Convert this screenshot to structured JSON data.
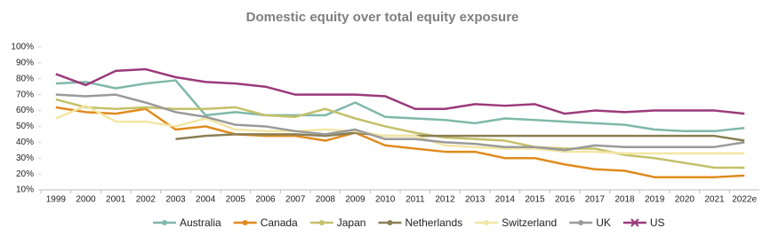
{
  "chart_data": {
    "type": "line",
    "title": "Domestic equity over total equity exposure",
    "categories": [
      "1999",
      "2000",
      "2001",
      "2002",
      "2003",
      "2004",
      "2005",
      "2006",
      "2007",
      "2008",
      "2009",
      "2010",
      "2011",
      "2012",
      "2013",
      "2014",
      "2015",
      "2016",
      "2017",
      "2018",
      "2019",
      "2020",
      "2021",
      "2022e"
    ],
    "ylim": [
      10,
      100
    ],
    "yticks": [
      {
        "value": 10,
        "label": "10%"
      },
      {
        "value": 20,
        "label": "20%"
      },
      {
        "value": 30,
        "label": "30%"
      },
      {
        "value": 40,
        "label": "40%"
      },
      {
        "value": 50,
        "label": "50%"
      },
      {
        "value": 60,
        "label": "60%"
      },
      {
        "value": 70,
        "label": "70%"
      },
      {
        "value": 80,
        "label": "80%"
      },
      {
        "value": 90,
        "label": "90%"
      },
      {
        "value": 100,
        "label": "100%"
      }
    ],
    "grid": false,
    "series": [
      {
        "name": "Australia",
        "color": "#7fb8ab",
        "values": [
          77,
          78,
          74,
          77,
          79,
          57,
          59,
          57,
          57,
          57,
          65,
          56,
          55,
          54,
          52,
          55,
          54,
          53,
          52,
          51,
          48,
          47,
          47,
          49
        ]
      },
      {
        "name": "Canada",
        "color": "#e08a1e",
        "values": [
          62,
          59,
          58,
          61,
          48,
          50,
          45,
          44,
          44,
          41,
          46,
          38,
          36,
          34,
          34,
          30,
          30,
          26,
          23,
          22,
          18,
          18,
          18,
          19
        ]
      },
      {
        "name": "Japan",
        "color": "#c4c06a",
        "values": [
          67,
          62,
          61,
          62,
          61,
          61,
          62,
          57,
          56,
          61,
          55,
          50,
          46,
          43,
          42,
          41,
          37,
          36,
          36,
          32,
          30,
          27,
          24,
          24
        ]
      },
      {
        "name": "Netherlands",
        "color": "#8a7f55",
        "values": [
          null,
          null,
          null,
          null,
          42,
          44,
          45,
          45,
          45,
          44,
          46,
          44,
          44,
          44,
          44,
          44,
          44,
          44,
          44,
          44,
          44,
          44,
          44,
          41
        ]
      },
      {
        "name": "Switzerland",
        "color": "#f2e6a4",
        "values": [
          55,
          63,
          53,
          53,
          50,
          55,
          48,
          47,
          47,
          48,
          47,
          44,
          44,
          38,
          37,
          36,
          36,
          34,
          34,
          33,
          33,
          33,
          33,
          33
        ]
      },
      {
        "name": "UK",
        "color": "#9a9a9a",
        "values": [
          70,
          69,
          70,
          65,
          59,
          56,
          51,
          50,
          47,
          45,
          48,
          42,
          42,
          40,
          39,
          37,
          37,
          35,
          38,
          37,
          37,
          37,
          37,
          40
        ]
      },
      {
        "name": "US",
        "color": "#9b3a7a",
        "values": [
          83,
          76,
          85,
          86,
          81,
          78,
          77,
          75,
          70,
          70,
          70,
          69,
          61,
          61,
          64,
          63,
          64,
          58,
          60,
          59,
          60,
          60,
          60,
          58
        ]
      }
    ]
  }
}
